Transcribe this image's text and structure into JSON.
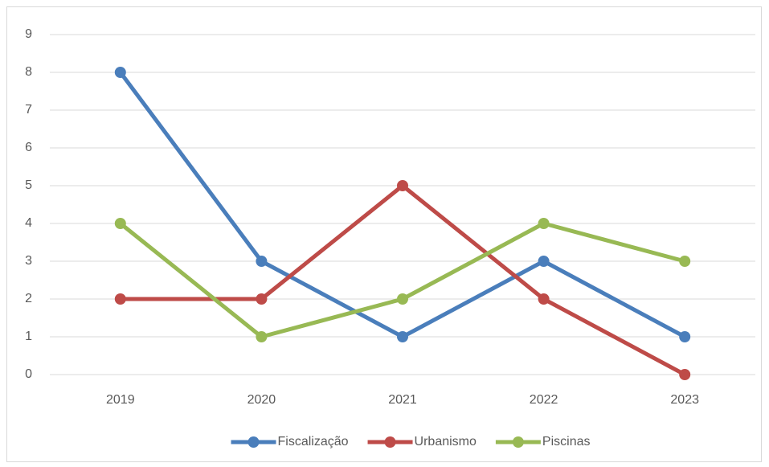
{
  "chart_data": {
    "type": "line",
    "categories": [
      "2019",
      "2020",
      "2021",
      "2022",
      "2023"
    ],
    "series": [
      {
        "name": "Fiscalização",
        "color": "#4a7ebb",
        "values": [
          8,
          3,
          1,
          3,
          1
        ]
      },
      {
        "name": "Urbanismo",
        "color": "#be4b48",
        "values": [
          2,
          2,
          5,
          2,
          0
        ]
      },
      {
        "name": "Piscinas",
        "color": "#98b954",
        "values": [
          4,
          1,
          2,
          4,
          3
        ]
      }
    ],
    "ylim": [
      0,
      9
    ],
    "yticks": [
      0,
      1,
      2,
      3,
      4,
      5,
      6,
      7,
      8,
      9
    ],
    "grid": true,
    "legend": "bottom"
  }
}
